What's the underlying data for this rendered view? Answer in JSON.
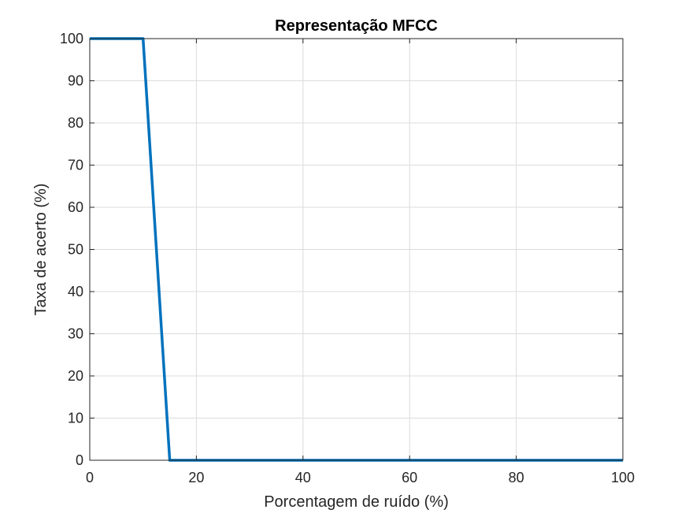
{
  "chart_data": {
    "type": "line",
    "title": "Representação MFCC",
    "xlabel": "Porcentagem de ruído (%)",
    "ylabel": "Taxa de acerto (%)",
    "xlim": [
      0,
      100
    ],
    "ylim": [
      0,
      100
    ],
    "xticks": [
      0,
      20,
      40,
      60,
      80,
      100
    ],
    "yticks": [
      0,
      10,
      20,
      30,
      40,
      50,
      60,
      70,
      80,
      90,
      100
    ],
    "grid": true,
    "box": true,
    "series": [
      {
        "color": "#0072BD",
        "x": [
          0,
          5,
          10,
          15,
          20,
          25,
          30,
          35,
          40,
          45,
          50,
          55,
          60,
          65,
          70,
          75,
          80,
          85,
          90,
          95,
          100
        ],
        "y": [
          100,
          100,
          100,
          0,
          0,
          0,
          0,
          0,
          0,
          0,
          0,
          0,
          0,
          0,
          0,
          0,
          0,
          0,
          0,
          0,
          0
        ]
      }
    ]
  }
}
